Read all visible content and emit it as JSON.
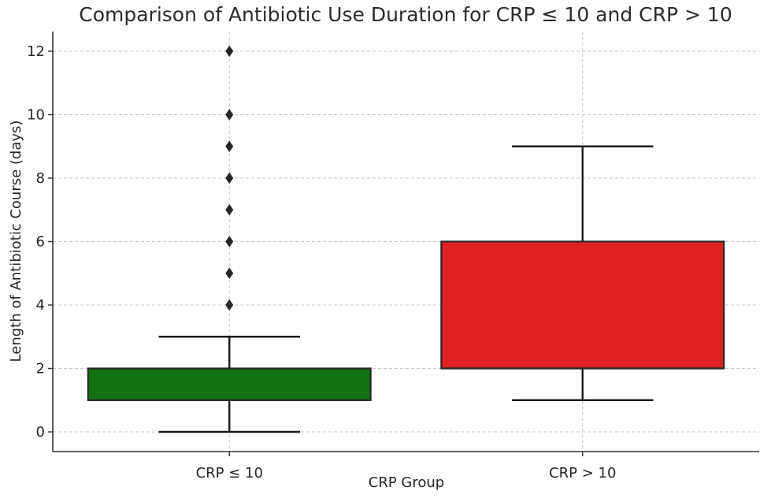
{
  "chart_data": {
    "type": "boxplot",
    "title": "Comparison of Antibiotic Use Duration for CRP ≤ 10 and CRP > 10",
    "xlabel": "CRP Group",
    "ylabel": "Length of Antibiotic Course (days)",
    "ylim": [
      -0.6,
      12.6
    ],
    "yticks": [
      0,
      2,
      4,
      6,
      8,
      10,
      12
    ],
    "grid": true,
    "categories": [
      "CRP ≤ 10",
      "CRP > 10"
    ],
    "boxes": [
      {
        "category": "CRP ≤ 10",
        "whisker_low": 0,
        "q1": 1,
        "median": 1,
        "q3": 2,
        "whisker_high": 3,
        "outliers": [
          4,
          5,
          6,
          7,
          8,
          9,
          10,
          12
        ],
        "color": "#117010"
      },
      {
        "category": "CRP > 10",
        "whisker_low": 1,
        "q1": 2,
        "median": 2,
        "q3": 6,
        "whisker_high": 9,
        "outliers": [],
        "color": "#df2121"
      }
    ]
  }
}
